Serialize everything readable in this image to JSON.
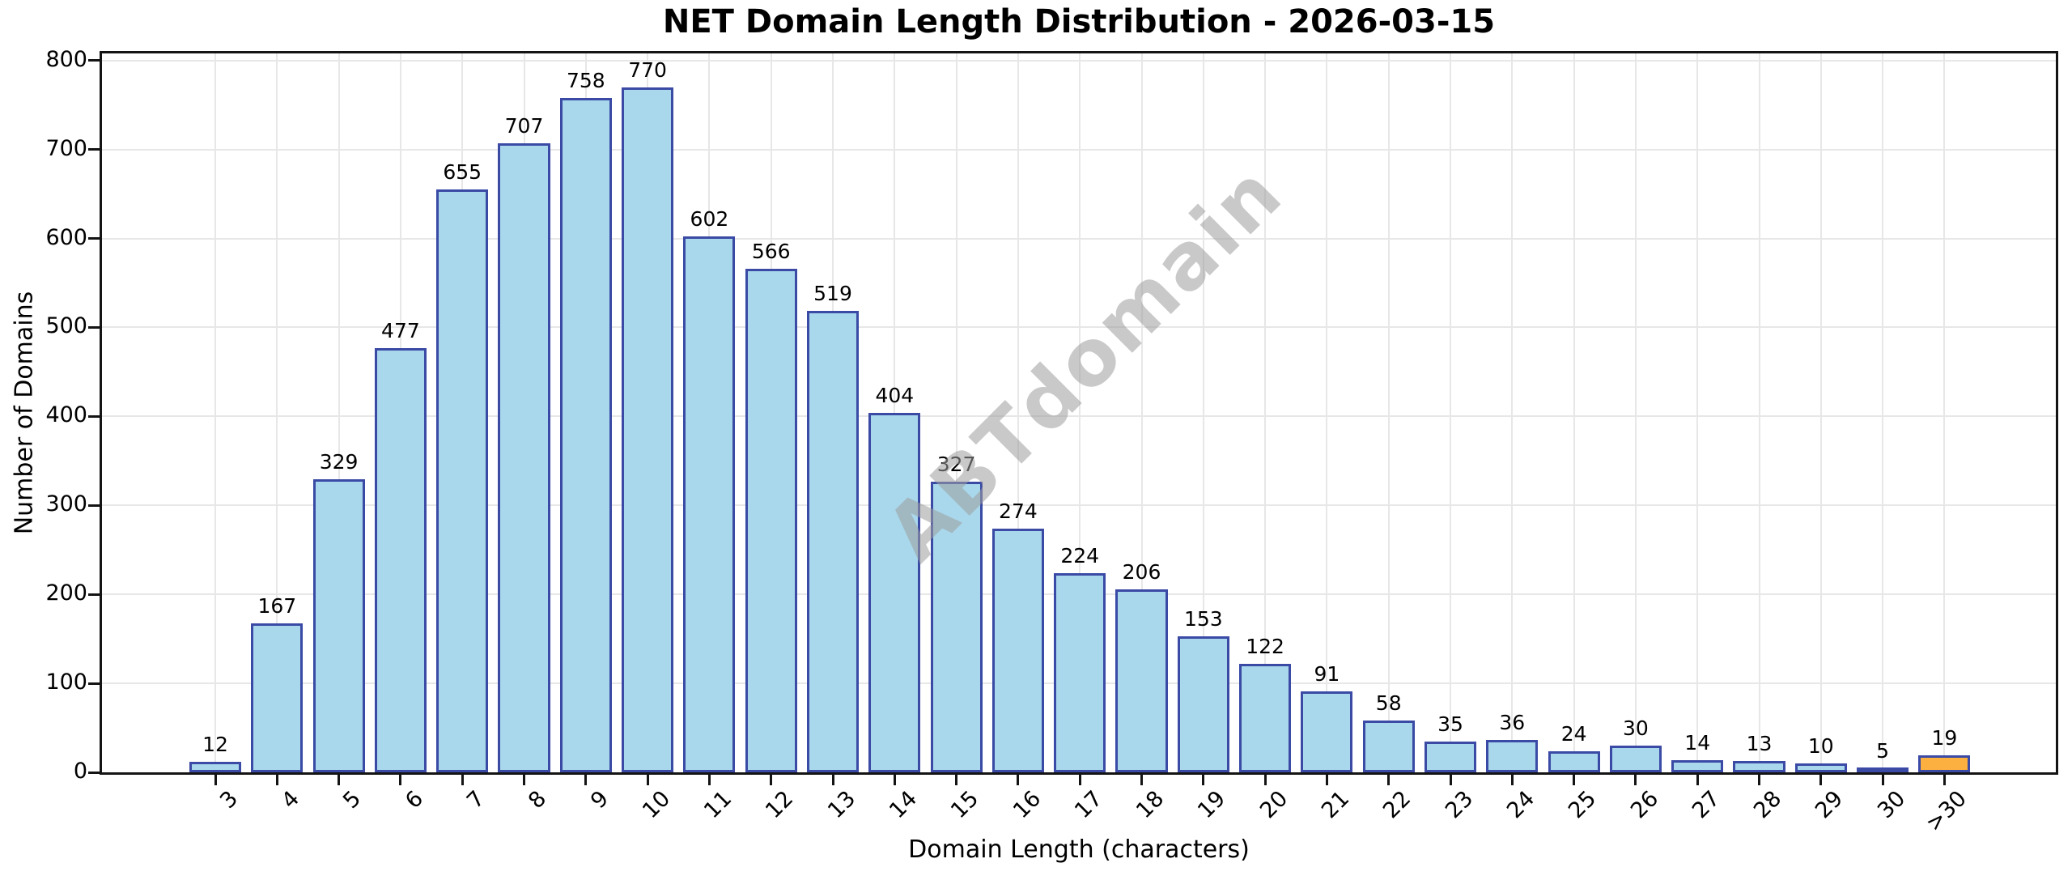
{
  "chart_data": {
    "type": "bar",
    "title": "NET Domain Length Distribution - 2026-03-15",
    "xlabel": "Domain Length (characters)",
    "ylabel": "Number of Domains",
    "categories": [
      "3",
      "4",
      "5",
      "6",
      "7",
      "8",
      "9",
      "10",
      "11",
      "12",
      "13",
      "14",
      "15",
      "16",
      "17",
      "18",
      "19",
      "20",
      "21",
      "22",
      "23",
      "24",
      "25",
      "26",
      "27",
      "28",
      "29",
      "30",
      ">30"
    ],
    "values": [
      12,
      167,
      329,
      477,
      655,
      707,
      758,
      770,
      602,
      566,
      519,
      404,
      327,
      274,
      224,
      206,
      153,
      122,
      91,
      58,
      35,
      36,
      24,
      30,
      14,
      13,
      10,
      5,
      19
    ],
    "y_ticks": [
      0,
      100,
      200,
      300,
      400,
      500,
      600,
      700,
      800
    ],
    "ylim": [
      0,
      800
    ],
    "grid": true,
    "legend": null,
    "watermark": "ABTdomain",
    "highlight_category": ">30",
    "colors": {
      "bar_fill": "#A9D8EC",
      "bar_edge": "#3A4AA5",
      "highlight_fill": "#FBB040",
      "grid": "#E7E7E7",
      "spine": "#141414",
      "watermark_gray": "#9E9E9E"
    }
  }
}
